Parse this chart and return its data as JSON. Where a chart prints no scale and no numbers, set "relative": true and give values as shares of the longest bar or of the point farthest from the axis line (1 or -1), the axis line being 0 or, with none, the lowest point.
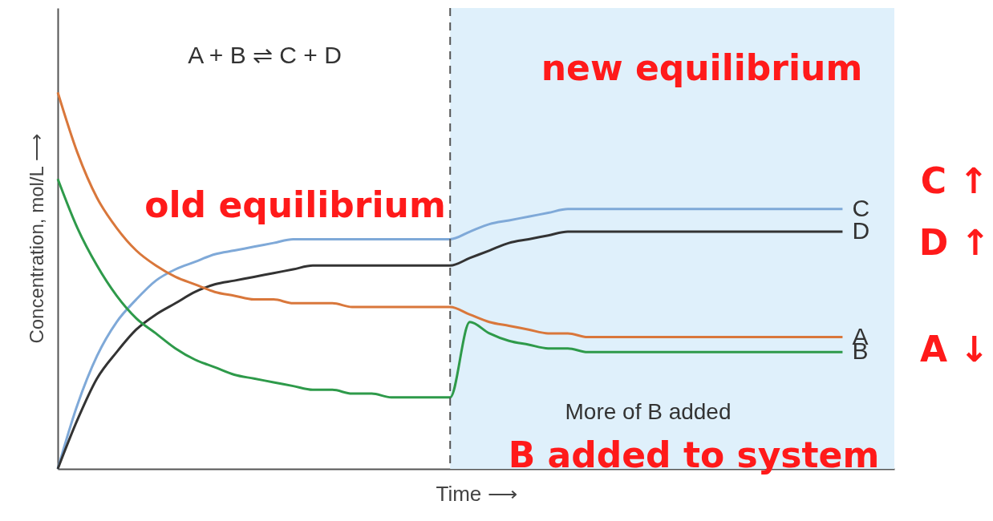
{
  "chart_data": {
    "type": "line",
    "relative": true,
    "xlabel": "Time ⟶",
    "ylabel": "Concentration, mol/L ⟶",
    "categories": [
      null,
      null,
      null,
      null,
      null,
      null,
      null,
      null,
      null,
      null,
      null,
      null,
      null,
      null,
      null,
      null,
      null,
      null,
      null,
      null,
      null,
      null,
      null,
      null,
      null,
      null,
      null,
      null,
      null,
      null,
      null,
      null,
      null,
      null,
      null,
      null,
      null,
      null,
      null,
      null,
      null
    ],
    "series": [
      {
        "name": "C",
        "color": "#7fa9d8",
        "values": [
          0,
          0.17,
          0.3,
          0.39,
          0.45,
          0.5,
          0.53,
          0.55,
          0.57,
          0.58,
          0.59,
          0.6,
          0.61,
          0.61,
          0.61,
          0.61,
          0.61,
          0.61,
          0.61,
          0.61,
          0.61,
          0.63,
          0.65,
          0.66,
          0.67,
          0.68,
          0.69,
          0.69,
          0.69,
          0.69,
          0.69,
          0.69,
          0.69,
          0.69,
          0.69,
          0.69,
          0.69,
          0.69,
          0.69,
          0.69,
          0.69
        ]
      },
      {
        "name": "D",
        "color": "#333333",
        "values": [
          0,
          0.13,
          0.24,
          0.31,
          0.37,
          0.41,
          0.44,
          0.47,
          0.49,
          0.5,
          0.51,
          0.52,
          0.53,
          0.54,
          0.54,
          0.54,
          0.54,
          0.54,
          0.54,
          0.54,
          0.54,
          0.56,
          0.58,
          0.6,
          0.61,
          0.62,
          0.63,
          0.63,
          0.63,
          0.63,
          0.63,
          0.63,
          0.63,
          0.63,
          0.63,
          0.63,
          0.63,
          0.63,
          0.63,
          0.63,
          0.63
        ]
      },
      {
        "name": "A",
        "color": "#d9773b",
        "values": [
          1,
          0.84,
          0.72,
          0.64,
          0.58,
          0.54,
          0.51,
          0.49,
          0.47,
          0.46,
          0.45,
          0.45,
          0.44,
          0.44,
          0.44,
          0.43,
          0.43,
          0.43,
          0.43,
          0.43,
          0.43,
          0.41,
          0.39,
          0.38,
          0.37,
          0.36,
          0.36,
          0.35,
          0.35,
          0.35,
          0.35,
          0.35,
          0.35,
          0.35,
          0.35,
          0.35,
          0.35,
          0.35,
          0.35,
          0.35,
          0.35
        ]
      },
      {
        "name": "B",
        "color": "#2e9a4a",
        "values": [
          0.77,
          0.64,
          0.54,
          0.46,
          0.4,
          0.36,
          0.32,
          0.29,
          0.27,
          0.25,
          0.24,
          0.23,
          0.22,
          0.21,
          0.21,
          0.2,
          0.2,
          0.19,
          0.19,
          0.19,
          0.19,
          0.39,
          0.36,
          0.34,
          0.33,
          0.32,
          0.32,
          0.31,
          0.31,
          0.31,
          0.31,
          0.31,
          0.31,
          0.31,
          0.31,
          0.31,
          0.31,
          0.31,
          0.31,
          0.31,
          0.31
        ]
      }
    ],
    "annotations": [
      "A + B ⇌ C + D",
      "new equilibrium",
      "old equilibrium",
      "More of B added",
      "B added to system",
      "C ↑",
      "D ↑",
      "A ↓"
    ]
  }
}
